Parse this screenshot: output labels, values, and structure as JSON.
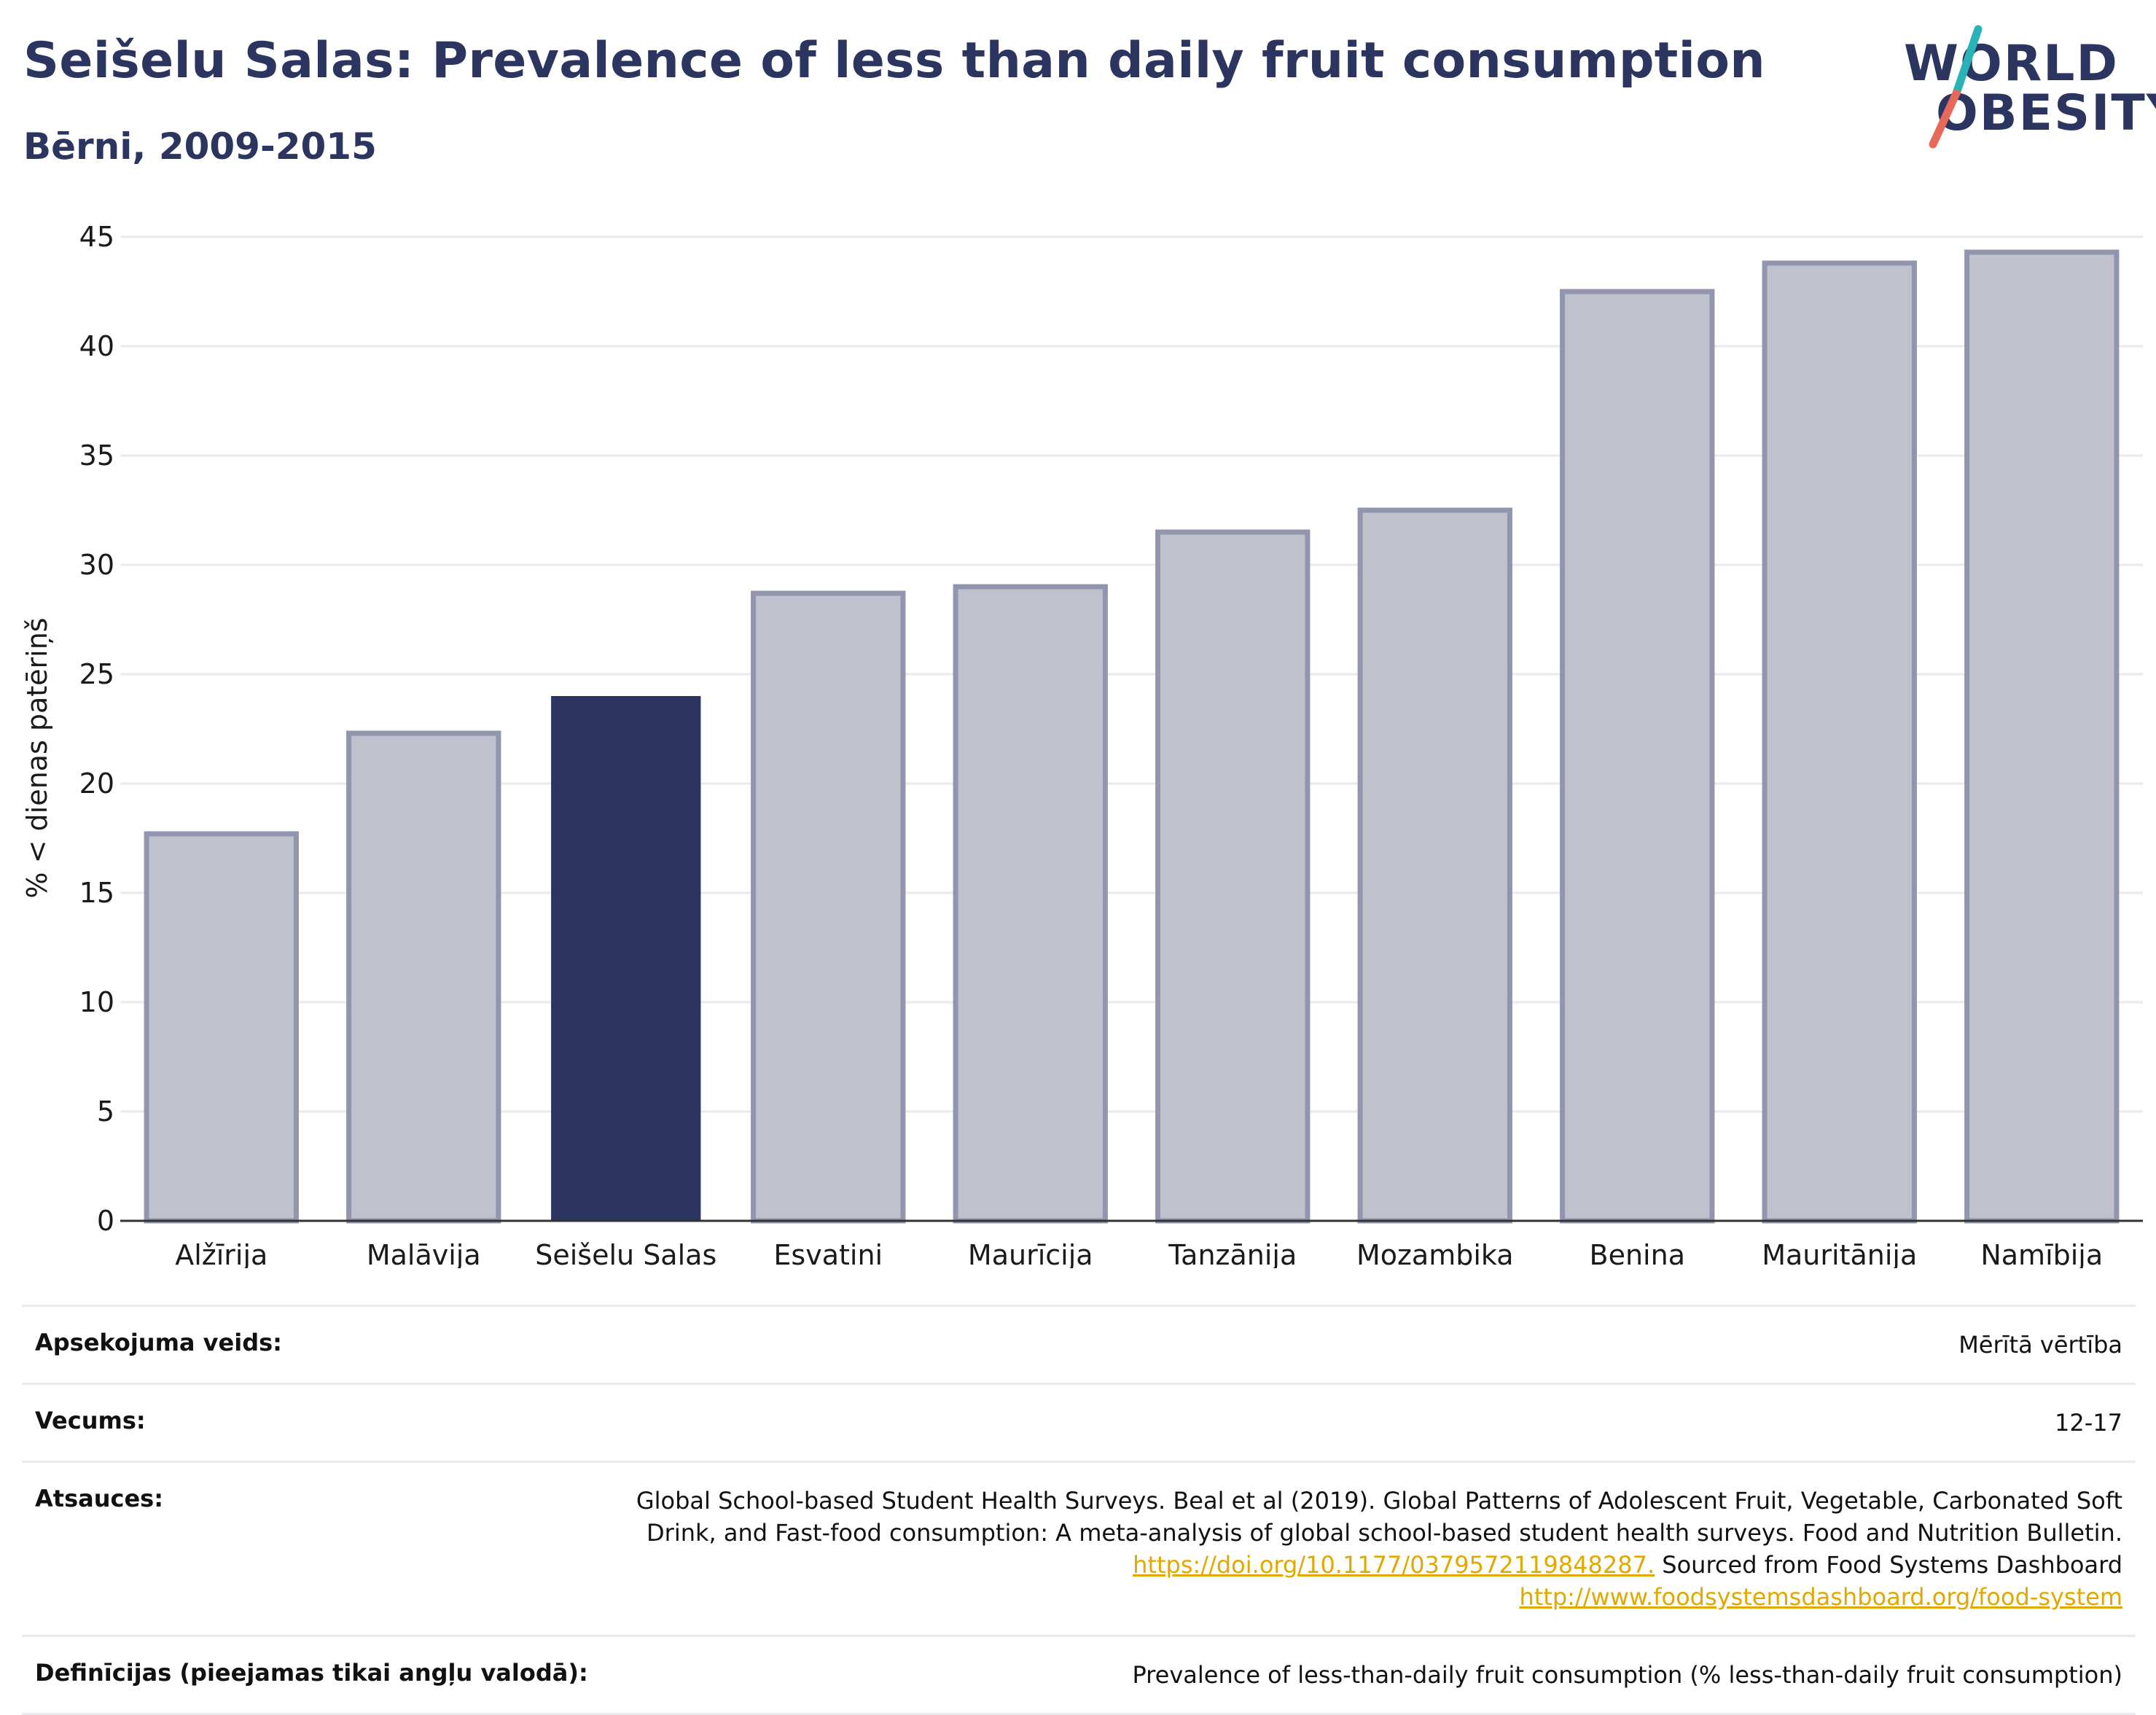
{
  "header": {
    "title": "Seišelu Salas: Prevalence of less than daily fruit consumption",
    "subtitle": "Bērni, 2009-2015"
  },
  "logo": {
    "line1": "WORLD",
    "line2": "OBESITY",
    "colors": {
      "text": "#2b3560",
      "slash_top": "#2ab3b6",
      "slash_bottom": "#e8685a"
    }
  },
  "colors": {
    "highlight_bar": "#2b3560",
    "bar_fill": "#bfc2cd",
    "bar_stroke": "#9196ae",
    "grid": "#e9e9ee",
    "axis": "#333333"
  },
  "chart_data": {
    "type": "bar",
    "title": "",
    "xlabel": "",
    "ylabel": "% < dienas patēriņš",
    "ylim": [
      0,
      45
    ],
    "yticks": [
      0,
      5,
      10,
      15,
      20,
      25,
      30,
      35,
      40,
      45
    ],
    "grid": true,
    "categories": [
      "Alžīrija",
      "Malāvija",
      "Seišelu Salas",
      "Esvatini",
      "Maurīcija",
      "Tanzānija",
      "Mozambika",
      "Benina",
      "Mauritānija",
      "Namībija"
    ],
    "values": [
      17.7,
      22.3,
      24.0,
      28.7,
      29.0,
      31.5,
      32.5,
      42.5,
      43.8,
      44.3
    ],
    "highlight": "Seišelu Salas"
  },
  "meta": [
    {
      "label": "Apsekojuma veids:",
      "value": "Mērītā vērtība"
    },
    {
      "label": "Vecums:",
      "value": "12-17"
    },
    {
      "label": "Atsauces:",
      "text_before": "Global School-based Student Health Surveys. Beal et al (2019). Global Patterns of Adolescent Fruit, Vegetable, Carbonated Soft Drink, and Fast-food consumption: A meta-analysis of global school-based student health surveys. Food and Nutrition Bulletin.",
      "link1": "https://doi.org/10.1177/0379572119848287.",
      "text_middle": "Sourced from Food Systems Dashboard",
      "link2": "http://www.foodsystemsdashboard.org/food-system"
    },
    {
      "label": "Definīcijas (pieejamas tikai angļu valodā):",
      "value": "Prevalence of less-than-daily fruit consumption (% less-than-daily fruit consumption)"
    }
  ]
}
